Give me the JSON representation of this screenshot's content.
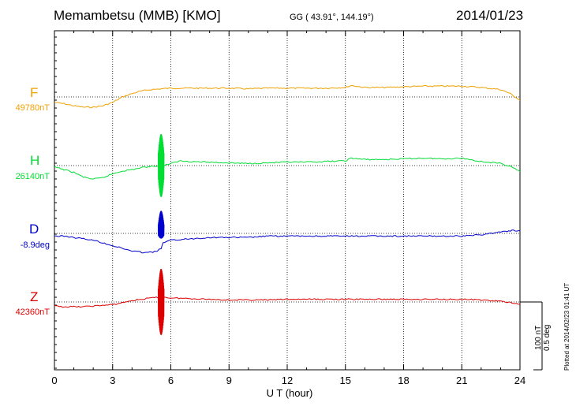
{
  "header": {
    "station": "Memambetsu (MMB)  [KMO]",
    "coords": "GG ( 43.91°, 144.19°)",
    "date": "2014/01/23"
  },
  "footer": {
    "plotted": "Plotted at 2014/02/23 01:41 UT",
    "scale_nt": "100 nT",
    "scale_deg": "0.5 deg"
  },
  "colors": {
    "F": "#f0a000",
    "H": "#00dd33",
    "D": "#0000cc",
    "Z": "#dd0000"
  },
  "chart_data": {
    "type": "line",
    "xlabel": "U T (hour)",
    "xlim": [
      0,
      24
    ],
    "xticks": [
      "0",
      "3",
      "6",
      "9",
      "12",
      "15",
      "18",
      "21",
      "24"
    ],
    "grid": true,
    "series": [
      {
        "name": "F",
        "baseline_label": "49780nT",
        "color": "#f0a000",
        "x": [
          0,
          0.5,
          1,
          1.5,
          2,
          2.5,
          3,
          3.5,
          4,
          4.5,
          5,
          5.5,
          6,
          7,
          8,
          9,
          10,
          11,
          12,
          13,
          14,
          15,
          15.3,
          16,
          17,
          18,
          19,
          20,
          21,
          22,
          23,
          23.5,
          24
        ],
        "y": [
          -8,
          -10,
          -13,
          -15,
          -15,
          -13,
          -8,
          0,
          5,
          9,
          11,
          12,
          13,
          13,
          13,
          13,
          12,
          13,
          13,
          13,
          13,
          14,
          17,
          14,
          14,
          15,
          16,
          16,
          16,
          14,
          11,
          5,
          -5
        ]
      },
      {
        "name": "H",
        "baseline_label": "26140nT",
        "color": "#00dd33",
        "x": [
          0,
          0.5,
          1,
          1.5,
          2,
          2.5,
          3,
          3.5,
          4,
          4.5,
          5,
          5.5,
          5.6,
          6,
          6.5,
          7,
          8,
          9,
          10,
          11,
          12,
          13,
          14,
          15,
          15.3,
          16,
          17,
          18,
          19,
          20,
          21,
          22,
          23,
          23.5,
          24
        ],
        "y": [
          -2,
          -6,
          -10,
          -17,
          -20,
          -18,
          -12,
          -8,
          -6,
          -3,
          -1,
          0,
          0,
          3,
          7,
          6,
          5,
          4,
          3,
          4,
          5,
          5,
          6,
          7,
          11,
          9,
          9,
          10,
          11,
          10,
          11,
          6,
          3,
          -1,
          -9
        ]
      },
      {
        "name": "D",
        "baseline_label": "-8.9deg",
        "color": "#0000cc",
        "x": [
          0,
          0.5,
          1,
          1.5,
          2,
          2.5,
          3,
          3.5,
          4,
          4.5,
          5,
          5.3,
          5.5,
          5.6,
          6,
          7,
          8,
          9,
          10,
          11,
          12,
          13,
          14,
          15,
          16,
          17,
          18,
          19,
          20,
          21,
          22,
          23,
          23.5,
          24
        ],
        "y": [
          -0.02,
          -0.02,
          -0.03,
          -0.04,
          -0.05,
          -0.07,
          -0.09,
          -0.11,
          -0.13,
          -0.14,
          -0.14,
          -0.13,
          -0.11,
          -0.07,
          -0.05,
          -0.04,
          -0.03,
          -0.03,
          -0.03,
          -0.02,
          -0.02,
          -0.02,
          -0.02,
          -0.02,
          -0.02,
          -0.02,
          -0.02,
          -0.02,
          -0.02,
          -0.02,
          -0.01,
          0.01,
          0.02,
          0.02
        ]
      },
      {
        "name": "Z",
        "baseline_label": "42360nT",
        "color": "#dd0000",
        "x": [
          0,
          0.5,
          1,
          1.5,
          2,
          2.5,
          3,
          3.5,
          4,
          4.5,
          5,
          5.5,
          6,
          7,
          8,
          9,
          10,
          11,
          12,
          13,
          14,
          15,
          16,
          17,
          18,
          19,
          20,
          21,
          22,
          23,
          23.5,
          24
        ],
        "y": [
          -6,
          -7,
          -7,
          -7,
          -6,
          -5,
          -4,
          -1,
          2,
          4,
          6,
          7,
          6,
          5,
          4,
          3,
          3,
          3,
          4,
          4,
          4,
          4,
          4,
          4,
          4,
          4,
          4,
          4,
          3,
          1,
          -1,
          -3
        ]
      }
    ],
    "disturbance": {
      "x_start": 5.35,
      "x_end": 5.65
    }
  }
}
